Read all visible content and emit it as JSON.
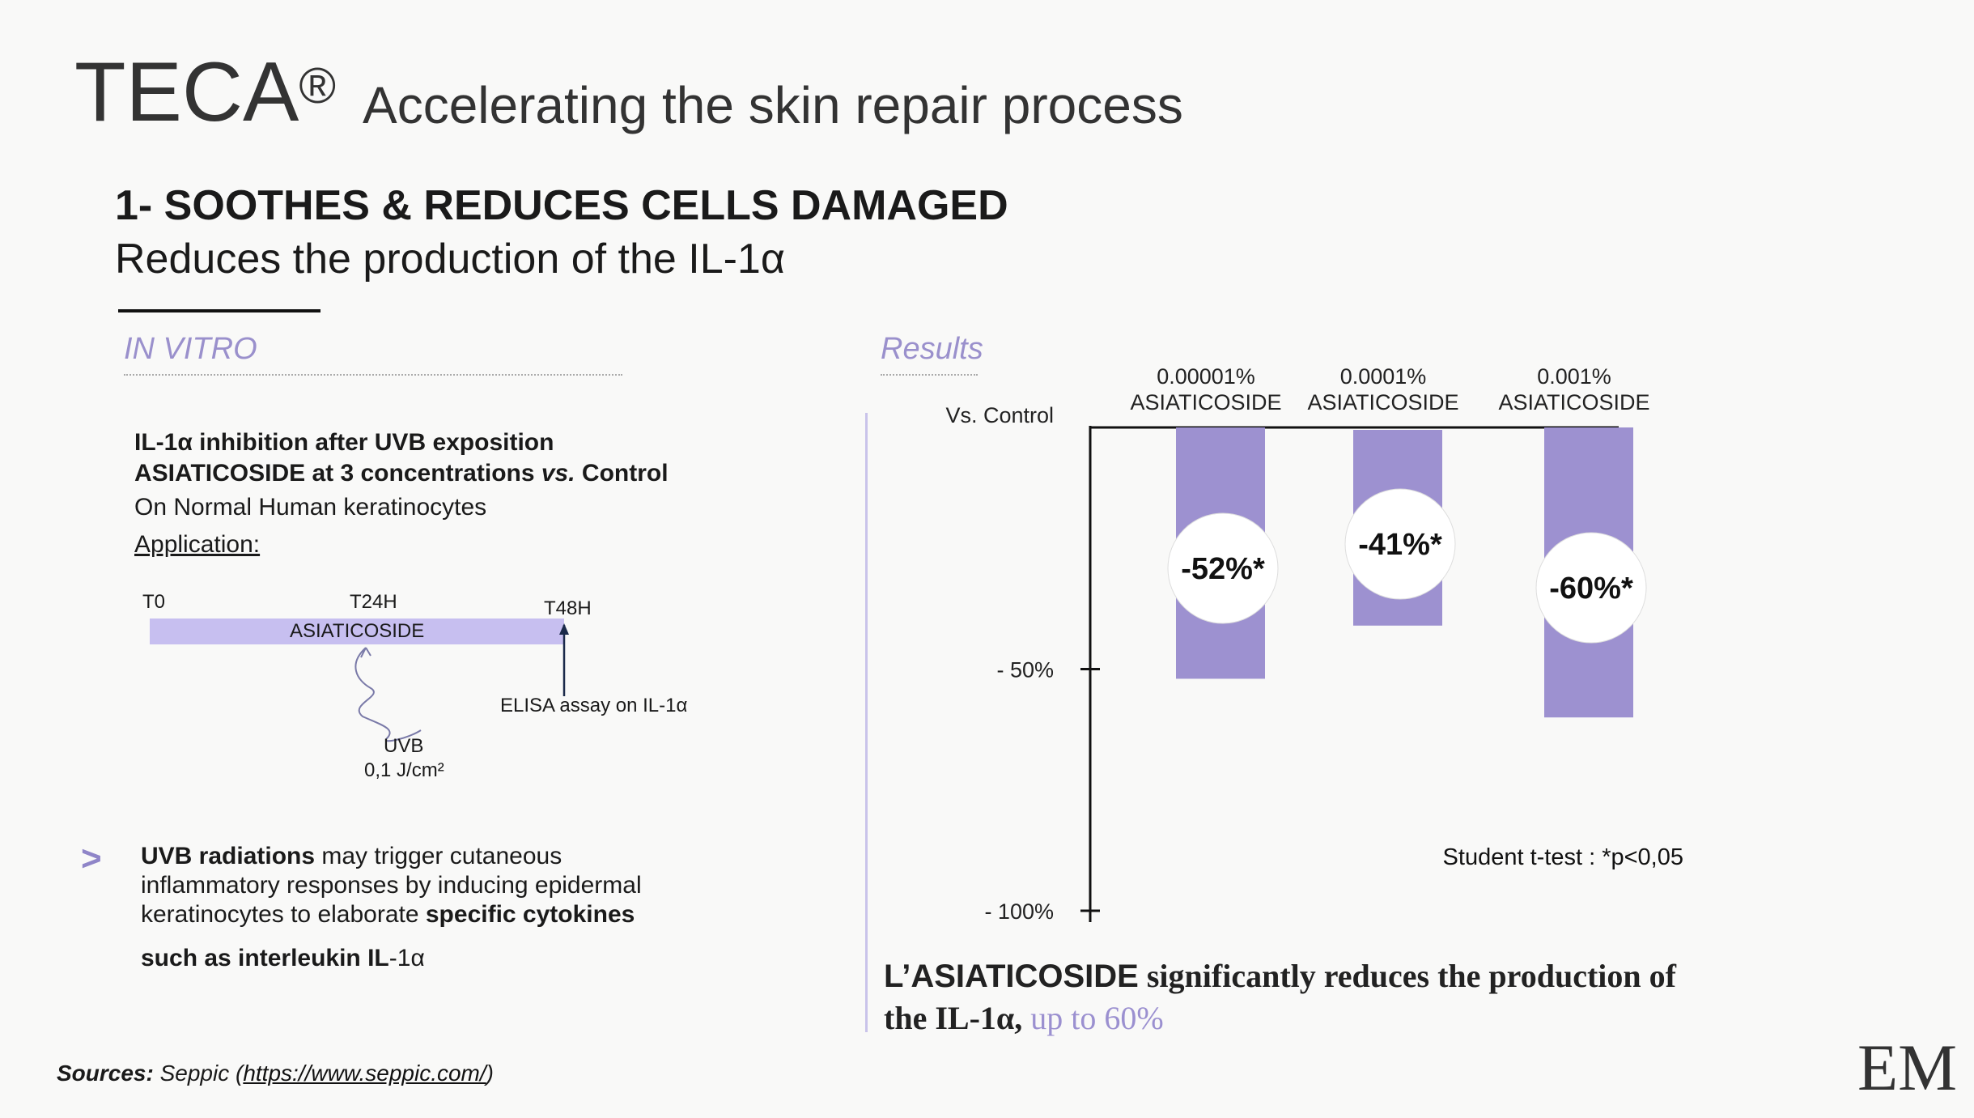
{
  "header": {
    "brand": "TECA",
    "brand_mark": "®",
    "subtitle": "Accelerating the skin repair process"
  },
  "section": {
    "title": "1- SOOTHES & REDUCES CELLS DAMAGED",
    "subtitle": "Reduces the production of the IL-1α"
  },
  "in_vitro": {
    "tag": "IN VITRO",
    "bold_line1": "IL-1α inhibition after UVB exposition",
    "bold_line2_a": "ASIATICOSIDE at 3 concentrations ",
    "bold_line2_vs": "vs.",
    "bold_line2_b": " Control",
    "line3": "On Normal Human keratinocytes",
    "application": "Application:",
    "timeline": {
      "t0": "T0",
      "t24": "T24H",
      "t48": "T48H",
      "bar_label": "ASIATICOSIDE",
      "elisa": "ELISA assay on  IL-1α",
      "uvb": "UVB",
      "uvb_dose": "0,1 J/cm²"
    },
    "bullet": {
      "arrow": ">",
      "p1_bold": "UVB radiations",
      "p1_rest": " may trigger cutaneous inflammatory responses by inducing epidermal keratinocytes to elaborate ",
      "p1_bold2": "specific cytokines",
      "p2_bold": "such as interleukin IL",
      "p2_rest": "-1α"
    }
  },
  "results": {
    "tag": "Results",
    "vs_control": "Vs. Control",
    "stats_note": "Student t-test : *p<0,05"
  },
  "chart_data": {
    "type": "bar",
    "categories": [
      "0.00001%\nASIATICOSIDE",
      "0.0001%\nASIATICOSIDE",
      "0.001%\nASIATICOSIDE"
    ],
    "category_line1": [
      "0.00001%",
      "0.0001%",
      "0.001%"
    ],
    "category_line2": [
      "ASIATICOSIDE",
      "ASIATICOSIDE",
      "ASIATICOSIDE"
    ],
    "values": [
      -52,
      -41,
      -60
    ],
    "data_labels": [
      "-52%*",
      "-41%*",
      "-60%*"
    ],
    "ylabel": "Vs. Control",
    "yticks": [
      0,
      -50,
      -100
    ],
    "ytick_labels": [
      "",
      "- 50%",
      "- 100%"
    ],
    "ylim": [
      -100,
      0
    ],
    "bar_color": "#9d91d0",
    "grid": false,
    "note": "Student t-test : *p<0,05"
  },
  "conclusion": {
    "bold1": "L’ASIATICOSIDE",
    "rest1": " significantly reduces the production of",
    "line2": "the IL-1α, ",
    "highlight": "up to 60%"
  },
  "sources": {
    "label": "Sources:",
    "text": " Seppic (",
    "link": "https://www.seppic.com/",
    "close": ")"
  },
  "logo": "EM",
  "colors": {
    "accent": "#9d91d0",
    "timeline_bar": "#c7bff0",
    "tag": "#9a90cc"
  }
}
